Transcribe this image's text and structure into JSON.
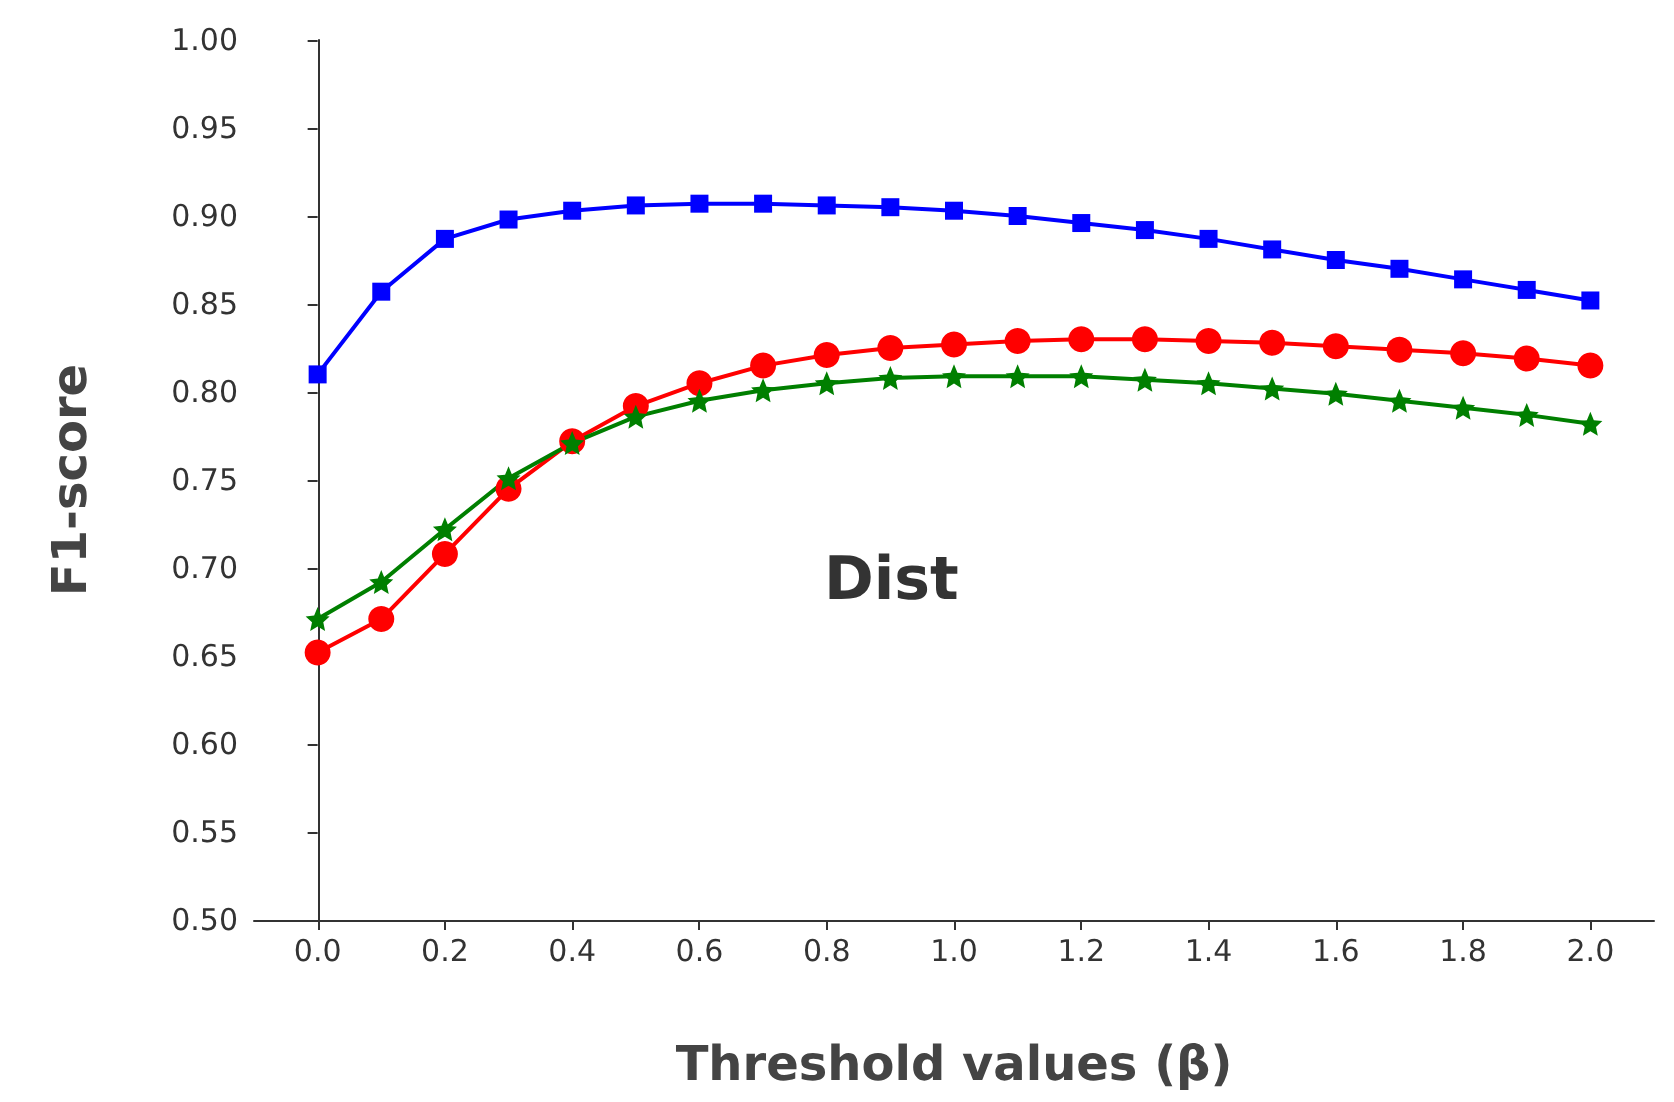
{
  "chart_data": {
    "type": "line",
    "xlabel": "Threshold values (β)",
    "ylabel": "F1-score",
    "annotations": [
      "Dist"
    ],
    "x": [
      0,
      0.1,
      0.2,
      0.3,
      0.4,
      0.5,
      0.6,
      0.7,
      0.8,
      0.9,
      1.0,
      1.1,
      1.2,
      1.3,
      1.4,
      1.5,
      1.6,
      1.7,
      1.8,
      1.9,
      2.0
    ],
    "series": [
      {
        "color": "#0000ff",
        "marker": "square",
        "values": [
          0.81,
          0.857,
          0.887,
          0.898,
          0.903,
          0.906,
          0.907,
          0.907,
          0.906,
          0.905,
          0.903,
          0.9,
          0.896,
          0.892,
          0.887,
          0.881,
          0.875,
          0.87,
          0.864,
          0.858,
          0.852
        ]
      },
      {
        "color": "#ff0000",
        "marker": "circle",
        "values": [
          0.652,
          0.671,
          0.708,
          0.745,
          0.772,
          0.792,
          0.805,
          0.815,
          0.821,
          0.825,
          0.827,
          0.829,
          0.83,
          0.83,
          0.829,
          0.828,
          0.826,
          0.824,
          0.822,
          0.819,
          0.815
        ]
      },
      {
        "color": "#007f00",
        "marker": "star",
        "values": [
          0.671,
          0.692,
          0.722,
          0.751,
          0.771,
          0.786,
          0.795,
          0.801,
          0.805,
          0.808,
          0.809,
          0.809,
          0.809,
          0.807,
          0.805,
          0.802,
          0.799,
          0.795,
          0.791,
          0.787,
          0.782
        ]
      }
    ],
    "xlim": [
      -0.1,
      2.1
    ],
    "xticks": [
      {
        "value": 0,
        "label": "0.0"
      },
      {
        "value": 0.2,
        "label": "0.2"
      },
      {
        "value": 0.4,
        "label": "0.4"
      },
      {
        "value": 0.6,
        "label": "0.6"
      },
      {
        "value": 0.8,
        "label": "0.8"
      },
      {
        "value": 1,
        "label": "1.0"
      },
      {
        "value": 1.2,
        "label": "1.2"
      },
      {
        "value": 1.4,
        "label": "1.4"
      },
      {
        "value": 1.6,
        "label": "1.6"
      },
      {
        "value": 1.8,
        "label": "1.8"
      },
      {
        "value": 2,
        "label": "2.0"
      }
    ],
    "ylim": [
      0.5,
      1.0
    ],
    "yticks": [
      {
        "value": 0.5,
        "label": "0.50"
      },
      {
        "value": 0.55,
        "label": "0.55"
      },
      {
        "value": 0.6,
        "label": "0.60"
      },
      {
        "value": 0.65,
        "label": "0.65"
      },
      {
        "value": 0.7,
        "label": "0.70"
      },
      {
        "value": 0.75,
        "label": "0.75"
      },
      {
        "value": 0.8,
        "label": "0.80"
      },
      {
        "value": 0.85,
        "label": "0.85"
      },
      {
        "value": 0.9,
        "label": "0.90"
      },
      {
        "value": 0.95,
        "label": "0.95"
      },
      {
        "value": 1,
        "label": "1.00"
      }
    ],
    "line_style": "solid"
  }
}
